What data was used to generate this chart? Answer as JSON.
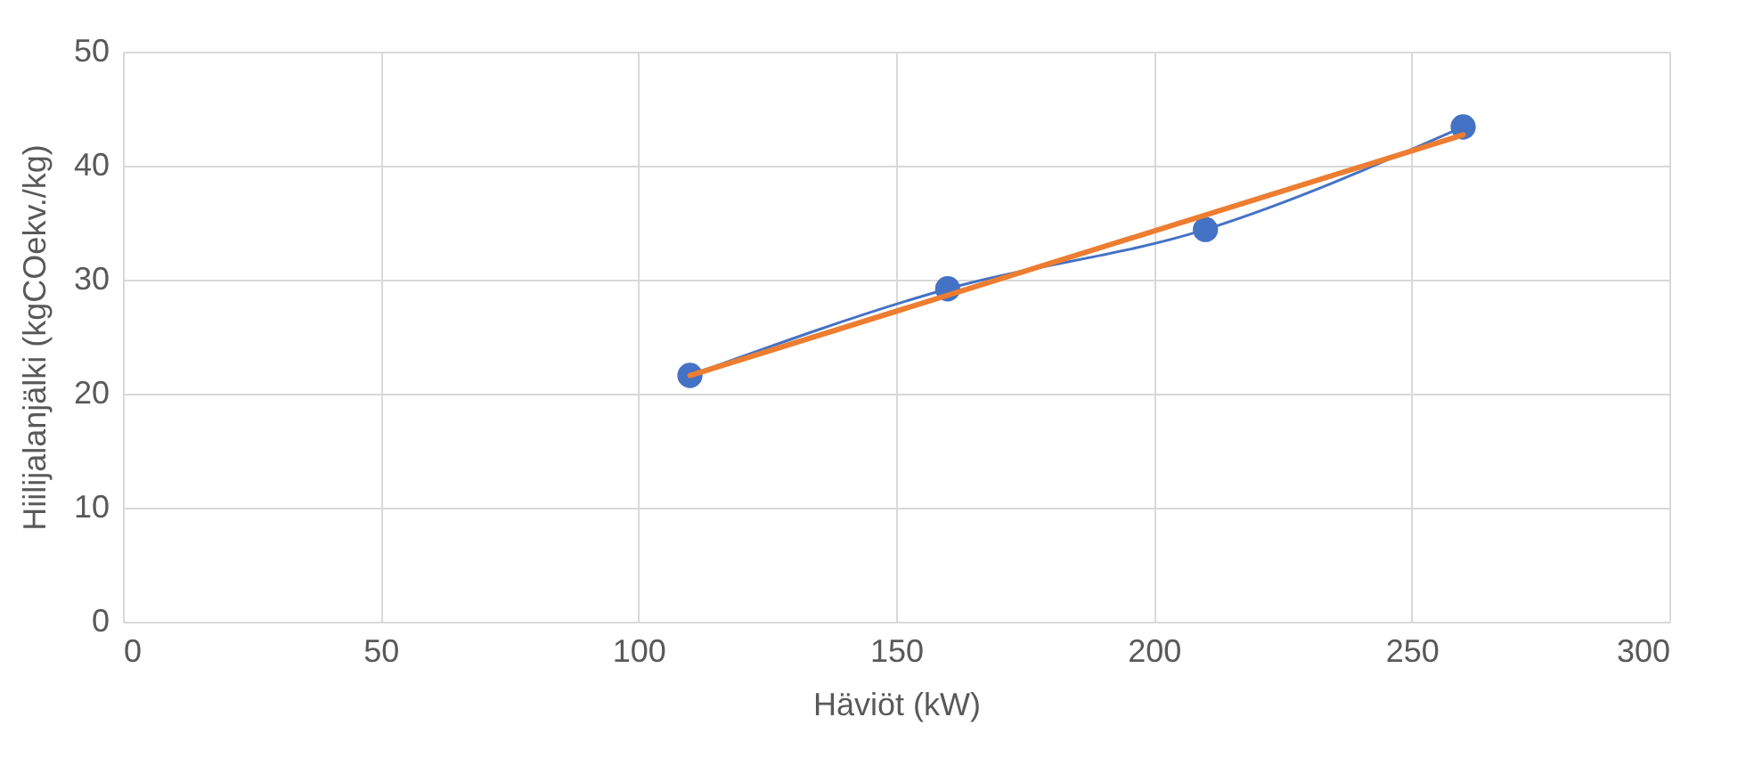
{
  "chart_data": {
    "type": "line",
    "xlabel": "Häviöt (kW)",
    "ylabel": "Hiilijalanjälki (kgCOekv./kg)",
    "x": [
      110,
      160,
      210,
      260
    ],
    "series": [
      {
        "color": "#4472c4",
        "values": [
          21.6,
          29.2,
          34.4,
          43.4
        ],
        "marker": "circle"
      },
      {
        "type": "line",
        "color": "#ed7d31",
        "x": [
          110,
          260
        ],
        "values": [
          21.6,
          42.7
        ],
        "marker": "none"
      }
    ],
    "xlim": [
      0,
      300
    ],
    "xticks": [
      0,
      50,
      100,
      150,
      200,
      250,
      300
    ],
    "ylim": [
      0,
      50
    ],
    "yticks": [
      0,
      10,
      20,
      30,
      40,
      50
    ],
    "grid": true
  }
}
